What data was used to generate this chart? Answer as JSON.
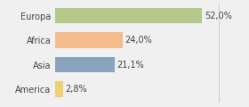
{
  "categories": [
    "Europa",
    "Africa",
    "Asia",
    "America"
  ],
  "values": [
    52.0,
    24.0,
    21.1,
    2.8
  ],
  "labels": [
    "52,0%",
    "24,0%",
    "21,1%",
    "2,8%"
  ],
  "bar_colors": [
    "#b5c98a",
    "#f2bc8d",
    "#8aa4c0",
    "#f0d070"
  ],
  "background_color": "#f0f0f0",
  "xlim": [
    0,
    58
  ],
  "label_fontsize": 7.0,
  "tick_fontsize": 7.0,
  "bar_height": 0.65
}
